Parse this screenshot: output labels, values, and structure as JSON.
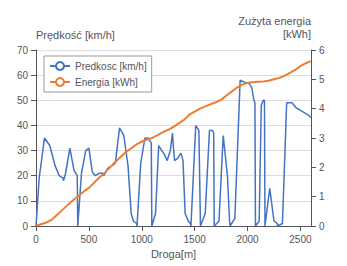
{
  "chart_data": {
    "type": "line",
    "ylabel": "Prędkość [km/h]",
    "y2label": "Zużyta energia\n[kWh]",
    "xlabel": "Droga[m]",
    "xlim": [
      0,
      2600
    ],
    "xticks": [
      0,
      500,
      1000,
      1500,
      2000,
      2500
    ],
    "ylim": [
      0,
      70
    ],
    "yticks": [
      0,
      10,
      20,
      30,
      40,
      50,
      60,
      70
    ],
    "y2lim": [
      0,
      6
    ],
    "y2ticks": [
      0,
      1,
      2,
      3,
      4,
      5,
      6
    ],
    "grid": true,
    "legend": "upper left",
    "series": [
      {
        "name": "Predkosc [km/h]",
        "color": "#4472C4",
        "axis": "y",
        "x": [
          0,
          30,
          80,
          130,
          180,
          220,
          255,
          260,
          280,
          320,
          360,
          390,
          395,
          430,
          470,
          500,
          530,
          540,
          560,
          600,
          630,
          640,
          680,
          720,
          750,
          790,
          830,
          870,
          900,
          920,
          950,
          955,
          990,
          1030,
          1060,
          1090,
          1095,
          1130,
          1160,
          1190,
          1220,
          1240,
          1270,
          1290,
          1300,
          1310,
          1340,
          1370,
          1390,
          1410,
          1440,
          1460,
          1465,
          1510,
          1540,
          1555,
          1600,
          1640,
          1670,
          1680,
          1685,
          1730,
          1770,
          1810,
          1830,
          1835,
          1880,
          1930,
          1980,
          2010,
          2040,
          2060,
          2070,
          2075,
          2110,
          2130,
          2150,
          2160,
          2165,
          2210,
          2250,
          2280,
          2285,
          2330,
          2370,
          2420,
          2460,
          2500,
          2540,
          2580,
          2600
        ],
        "values": [
          0,
          19,
          35,
          32,
          24,
          20,
          19,
          18,
          21,
          31,
          22,
          20,
          0,
          21,
          30,
          31,
          22,
          21,
          20,
          21,
          21,
          20,
          23,
          24,
          25,
          39,
          36,
          24,
          5,
          2,
          1,
          0,
          25,
          35,
          35,
          33,
          0,
          5,
          32,
          30,
          28,
          26,
          30,
          37,
          31,
          26,
          27,
          29,
          26,
          5,
          2,
          1,
          0,
          40,
          38,
          0,
          5,
          38,
          38,
          37,
          0,
          2,
          36,
          20,
          2,
          0,
          3,
          58,
          57,
          57,
          55,
          50,
          49,
          0,
          2,
          48,
          50,
          50,
          0,
          15,
          2,
          1,
          0,
          1,
          49,
          49,
          47,
          46,
          45,
          44,
          43
        ]
      },
      {
        "name": "Energia [kWh]",
        "color": "#ED7D31",
        "axis": "y2",
        "x": [
          0,
          30,
          100,
          150,
          200,
          250,
          300,
          350,
          400,
          450,
          500,
          550,
          600,
          650,
          700,
          750,
          800,
          850,
          900,
          950,
          1000,
          1050,
          1100,
          1120,
          1150,
          1200,
          1250,
          1300,
          1350,
          1400,
          1430,
          1450,
          1500,
          1550,
          1600,
          1650,
          1700,
          1750,
          1800,
          1850,
          1900,
          1950,
          2000,
          2050,
          2100,
          2150,
          2200,
          2250,
          2300,
          2350,
          2400,
          2450,
          2500,
          2550,
          2600
        ],
        "values": [
          0.02,
          0.04,
          0.12,
          0.22,
          0.38,
          0.55,
          0.72,
          0.88,
          1.02,
          1.17,
          1.3,
          1.48,
          1.65,
          1.82,
          2.0,
          2.18,
          2.35,
          2.52,
          2.65,
          2.78,
          2.88,
          2.95,
          3.0,
          3.05,
          3.1,
          3.2,
          3.28,
          3.38,
          3.5,
          3.62,
          3.72,
          3.8,
          3.9,
          4.0,
          4.08,
          4.15,
          4.22,
          4.3,
          4.45,
          4.58,
          4.72,
          4.82,
          4.88,
          4.9,
          4.92,
          4.93,
          4.95,
          5.0,
          5.05,
          5.12,
          5.22,
          5.32,
          5.45,
          5.55,
          5.62
        ]
      }
    ]
  }
}
